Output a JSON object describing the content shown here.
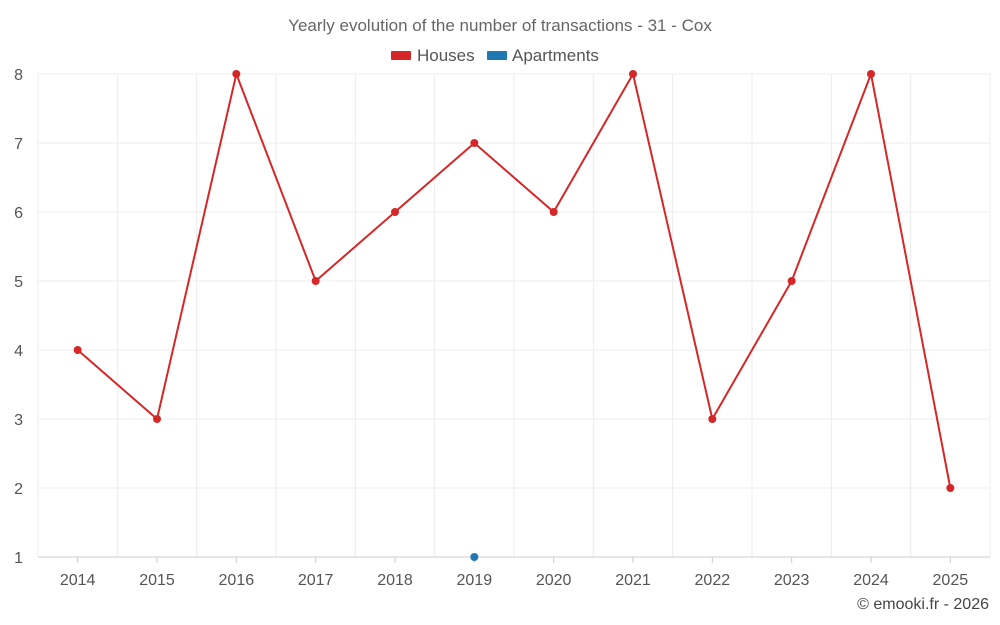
{
  "chart_data": {
    "type": "line",
    "title": "Yearly evolution of the number of transactions - 31 - Cox",
    "x": [
      "2014",
      "2015",
      "2016",
      "2017",
      "2018",
      "2019",
      "2020",
      "2021",
      "2022",
      "2023",
      "2024",
      "2025"
    ],
    "series": [
      {
        "name": "Houses",
        "color": "#d62728",
        "values": [
          4,
          3,
          8,
          5,
          6,
          7,
          6,
          8,
          3,
          5,
          8,
          2
        ]
      },
      {
        "name": "Apartments",
        "color": "#1f77b4",
        "values": [
          null,
          null,
          null,
          null,
          null,
          1,
          null,
          null,
          null,
          null,
          null,
          null
        ]
      }
    ],
    "yticks": [
      1,
      2,
      3,
      4,
      5,
      6,
      7,
      8
    ],
    "ylim": [
      1,
      8
    ],
    "grid": true,
    "legend_position": "top-center",
    "credit": "© emooki.fr - 2026"
  }
}
